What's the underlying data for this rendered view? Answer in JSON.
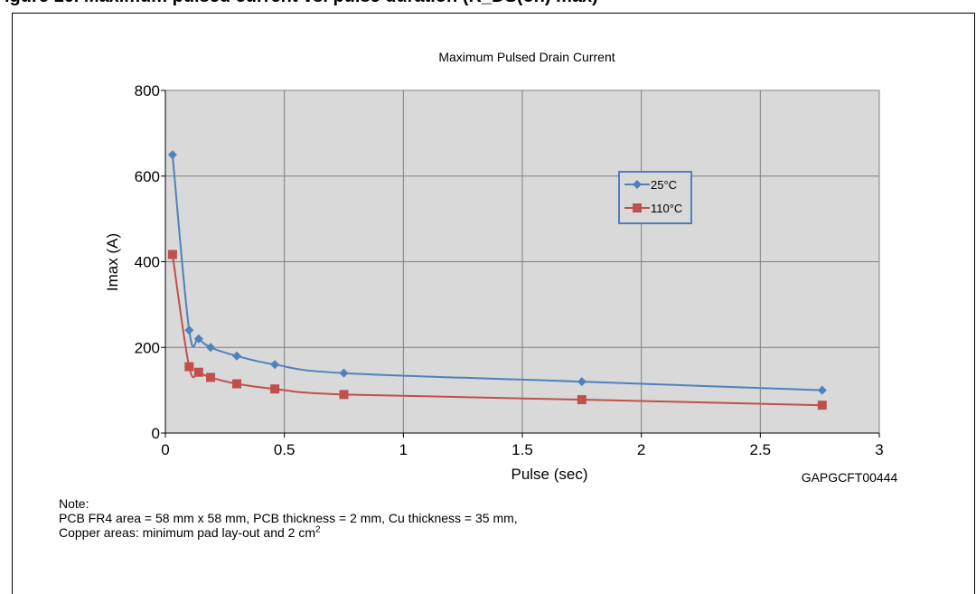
{
  "header_fragment": "igure 16. Maximum pulsed current vs. pulse duration (R_DS(on) max)",
  "chart_data": {
    "type": "line",
    "title": "Maximum Pulsed Drain Current",
    "xlabel": "Pulse (sec)",
    "ylabel": "Imax (A)",
    "xlim": [
      0,
      3
    ],
    "ylim": [
      0,
      800
    ],
    "xticks": [
      0,
      0.5,
      1,
      1.5,
      2,
      2.5,
      3
    ],
    "xtick_labels": [
      "0",
      "0.5",
      "1",
      "1.5",
      "2",
      "2.5",
      "3"
    ],
    "yticks": [
      0,
      200,
      400,
      600,
      800
    ],
    "ytick_labels": [
      "0",
      "200",
      "400",
      "600",
      "800"
    ],
    "grid": true,
    "legend_position": "upper-right-inside",
    "series": [
      {
        "name": "25°C",
        "color": "#4F81BD",
        "marker": "diamond",
        "x": [
          0.03,
          0.1,
          0.14,
          0.19,
          0.3,
          0.46,
          0.75,
          1.75,
          2.76
        ],
        "y": [
          650,
          240,
          220,
          200,
          180,
          160,
          140,
          120,
          100
        ]
      },
      {
        "name": "110°C",
        "color": "#C0504D",
        "marker": "square",
        "x": [
          0.03,
          0.1,
          0.14,
          0.19,
          0.3,
          0.46,
          0.75,
          1.75,
          2.76
        ],
        "y": [
          417,
          155,
          142,
          130,
          115,
          103,
          90,
          78,
          65
        ]
      }
    ],
    "annotation": "GAPGCFT00444"
  },
  "note": {
    "heading": "Note:",
    "line1": "PCB FR4 area = 58 mm x 58 mm, PCB thickness = 2 mm, Cu thickness = 35 mm,",
    "line2_text": "Copper areas: minimum pad lay-out and 2 cm",
    "line2_sup": "2"
  },
  "colors": {
    "plot_bg": "#D9D9D9",
    "grid": "#7F7F7F",
    "legend_border": "#4F81BD"
  }
}
